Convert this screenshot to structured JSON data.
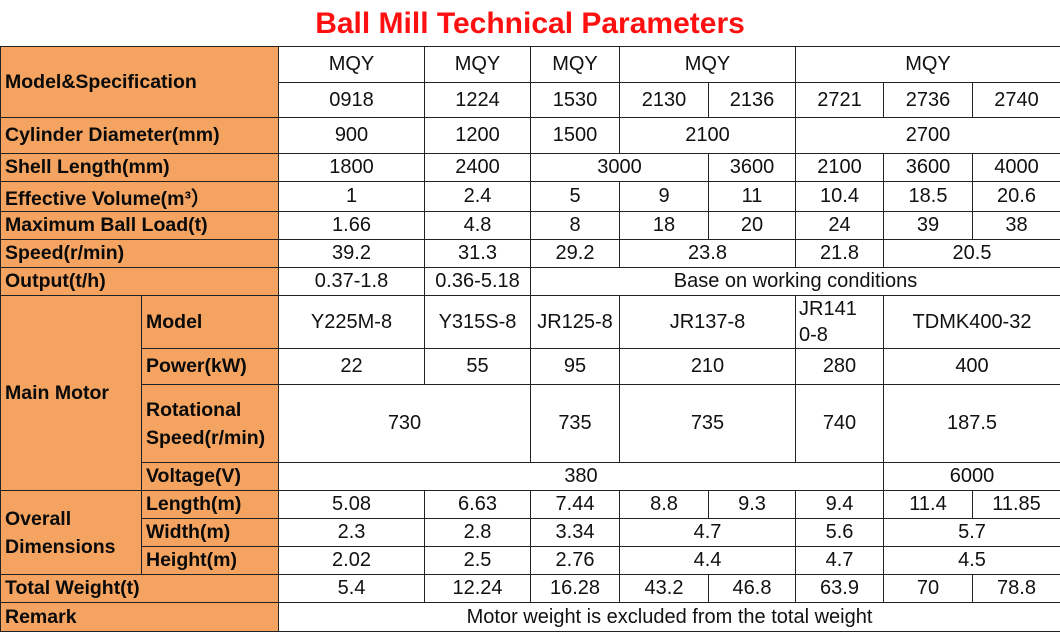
{
  "title": "Ball Mill Technical Parameters",
  "labels": {
    "model_spec": "Model&Specification",
    "cylinder_diameter": "Cylinder Diameter(mm)",
    "shell_length": "Shell Length(mm)",
    "effective_volume": "Effective Volume(m³）",
    "max_ball_load": "Maximum Ball Load(t)",
    "speed": "Speed(r/min)",
    "output": "Output(t/h)",
    "main_motor": "Main Motor",
    "motor_model": "Model",
    "power": "Power(kW)",
    "rotational_speed": "Rotational Speed(r/min)",
    "voltage": "Voltage(V)",
    "overall_dimensions": "Overall Dimensions",
    "length": "Length(m)",
    "width": "Width(m)",
    "height": "Height(m)",
    "total_weight": "Total Weight(t)",
    "remark": "Remark"
  },
  "model_series": [
    "MQY",
    "MQY",
    "MQY",
    "MQY",
    "MQY"
  ],
  "model_numbers": [
    "0918",
    "1224",
    "1530",
    "2130",
    "2136",
    "2721",
    "2736",
    "2740"
  ],
  "cylinder_diameter": [
    "900",
    "1200",
    "1500",
    "2100",
    "2700"
  ],
  "shell_length": [
    "1800",
    "2400",
    "3000",
    "3600",
    "2100",
    "3600",
    "4000"
  ],
  "effective_volume": [
    "1",
    "2.4",
    "5",
    "9",
    "11",
    "10.4",
    "18.5",
    "20.6"
  ],
  "max_ball_load": [
    "1.66",
    "4.8",
    "8",
    "18",
    "20",
    "24",
    "39",
    "38"
  ],
  "speed": [
    "39.2",
    "31.3",
    "29.2",
    "23.8",
    "21.8",
    "20.5"
  ],
  "output": [
    "0.37-1.8",
    "0.36-5.18",
    "Base on working conditions"
  ],
  "motor_model": [
    "Y225M-8",
    "Y315S-8",
    "JR125-8",
    "JR137-8",
    "JR141\n0-8",
    "TDMK400-32"
  ],
  "power": [
    "22",
    "55",
    "95",
    "210",
    "280",
    "400"
  ],
  "rotational_speed": [
    "730",
    "735",
    "735",
    "740",
    "187.5"
  ],
  "voltage": [
    "380",
    "6000"
  ],
  "length": [
    "5.08",
    "6.63",
    "7.44",
    "8.8",
    "9.3",
    "9.4",
    "11.4",
    "11.85"
  ],
  "width": [
    "2.3",
    "2.8",
    "3.34",
    "4.7",
    "5.6",
    "5.7"
  ],
  "height": [
    "2.02",
    "2.5",
    "2.76",
    "4.4",
    "4.7",
    "4.5"
  ],
  "total_weight": [
    "5.4",
    "12.24",
    "16.28",
    "43.2",
    "46.8",
    "63.9",
    "70",
    "78.8"
  ],
  "remark": "Motor weight is excluded from the total weight",
  "colors": {
    "title": "#ff1010",
    "label_bg": "#f4a460",
    "border": "#222222"
  }
}
